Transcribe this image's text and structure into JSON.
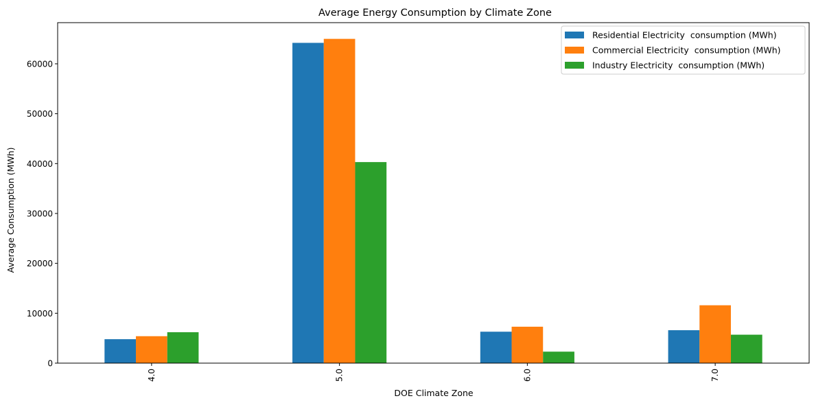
{
  "chart_data": {
    "type": "bar",
    "title": "Average Energy Consumption by Climate Zone",
    "xlabel": "DOE Climate Zone",
    "ylabel": "Average Consumption (MWh)",
    "categories": [
      "4.0",
      "5.0",
      "6.0",
      "7.0"
    ],
    "series": [
      {
        "name": "Residential Electricity  consumption (MWh)",
        "color": "#1f77b4",
        "values": [
          4800,
          64200,
          6300,
          6600
        ]
      },
      {
        "name": "Commercial Electricity  consumption (MWh)",
        "color": "#ff7f0e",
        "values": [
          5400,
          65000,
          7300,
          11600
        ]
      },
      {
        "name": "Industry Electricity  consumption (MWh)",
        "color": "#2ca02c",
        "values": [
          6200,
          40300,
          2300,
          5700
        ]
      }
    ],
    "yticks": [
      0,
      10000,
      20000,
      30000,
      40000,
      50000,
      60000
    ],
    "ylim": [
      0,
      68250
    ],
    "grid": false,
    "legend_position": "top-right"
  }
}
